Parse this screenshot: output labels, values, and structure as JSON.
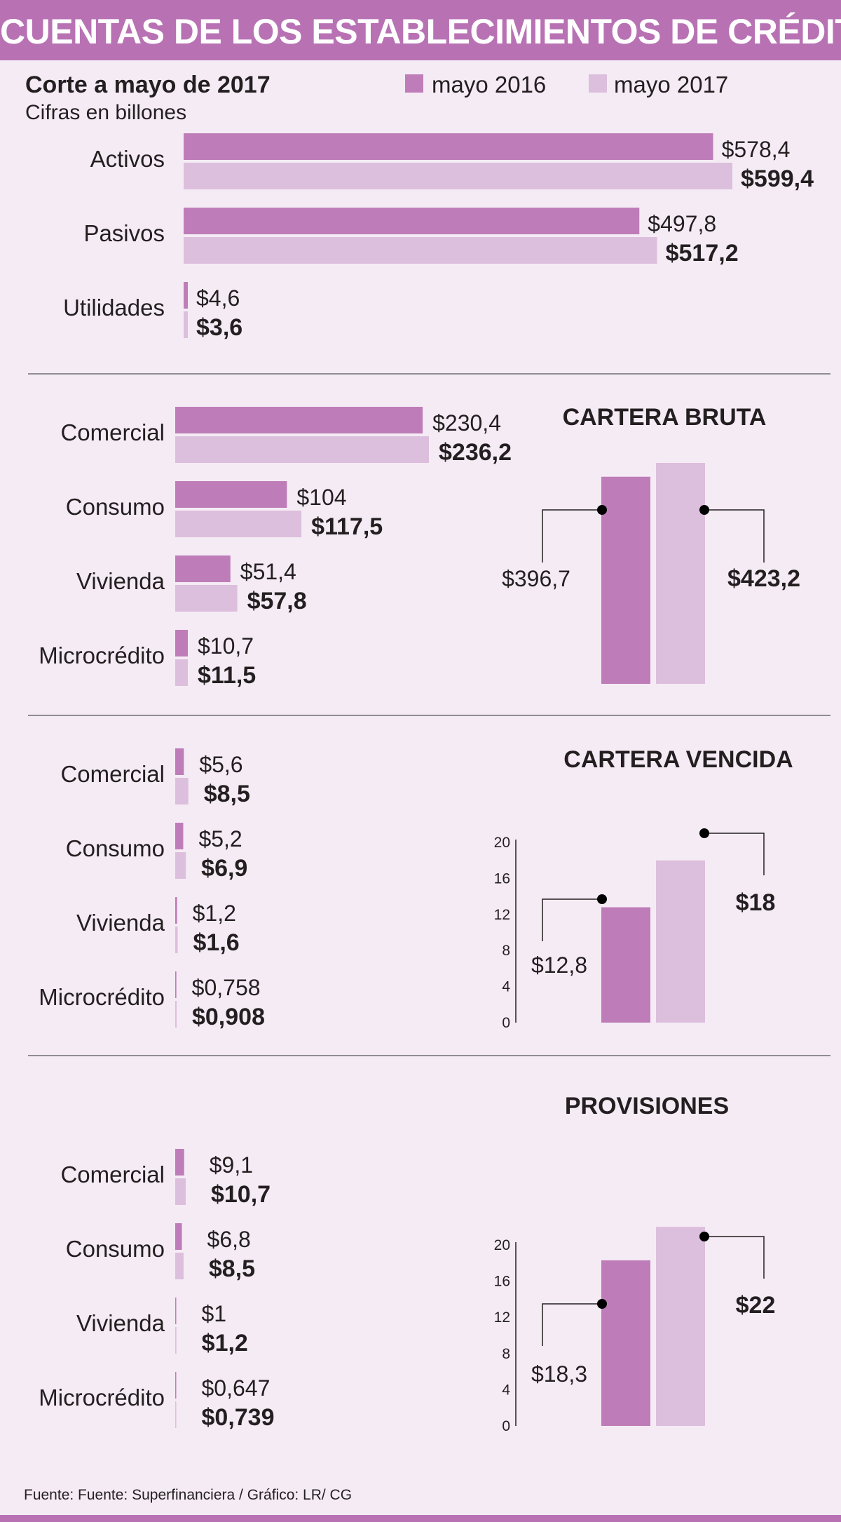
{
  "header": {
    "title": "CUENTAS DE LOS ESTABLECIMIENTOS DE CRÉDITO"
  },
  "subtitle": {
    "cut": "Corte a mayo de 2017",
    "units": "Cifras en billones"
  },
  "legend": [
    {
      "label": "mayo 2016",
      "color": "#be7db8"
    },
    {
      "label": "mayo 2017",
      "color": "#dcbfdc"
    }
  ],
  "source": "Fuente: Fuente: Superfinanciera / Gráfico: LR/ CG",
  "chart_data": [
    {
      "type": "bar",
      "orientation": "horizontal",
      "categories": [
        "Activos",
        "Pasivos",
        "Utilidades"
      ],
      "series": [
        {
          "name": "mayo 2016",
          "values": [
            578.4,
            497.8,
            4.6
          ],
          "labels": [
            "$578,4",
            "$497,8",
            "$4,6"
          ]
        },
        {
          "name": "mayo 2017",
          "values": [
            599.4,
            517.2,
            3.6
          ],
          "labels": [
            "$599,4",
            "$517,2",
            "$3,6"
          ]
        }
      ],
      "title": "",
      "xlim": [
        0,
        599.4
      ]
    },
    {
      "type": "bar",
      "orientation": "horizontal",
      "categories": [
        "Comercial",
        "Consumo",
        "Vivienda",
        "Microcrédito"
      ],
      "series": [
        {
          "name": "mayo 2016",
          "values": [
            230.4,
            104,
            51.4,
            10.7
          ],
          "labels": [
            "$230,4",
            "$104",
            "$51,4",
            "$10,7"
          ]
        },
        {
          "name": "mayo 2017",
          "values": [
            236.2,
            117.5,
            57.8,
            11.5
          ],
          "labels": [
            "$236,2",
            "$117,5",
            "$57,8",
            "$11,5"
          ]
        }
      ],
      "title": ""
    },
    {
      "type": "bar",
      "title": "CARTERA BRUTA",
      "series": [
        {
          "name": "mayo 2016",
          "values": [
            396.7
          ],
          "labels": [
            "$396,7"
          ]
        },
        {
          "name": "mayo 2017",
          "values": [
            423.2
          ],
          "labels": [
            "$423,2"
          ]
        }
      ],
      "ylim": [
        0,
        423.2
      ],
      "grid": false
    },
    {
      "type": "bar",
      "orientation": "horizontal",
      "categories": [
        "Comercial",
        "Consumo",
        "Vivienda",
        "Microcrédito"
      ],
      "series": [
        {
          "name": "mayo 2016",
          "values": [
            5.6,
            5.2,
            1.2,
            0.758
          ],
          "labels": [
            "$5,6",
            "$5,2",
            "$1,2",
            "$0,758"
          ]
        },
        {
          "name": "mayo 2017",
          "values": [
            8.5,
            6.9,
            1.6,
            0.908
          ],
          "labels": [
            "$8,5",
            "$6,9",
            "$1,6",
            "$0,908"
          ]
        }
      ],
      "title": ""
    },
    {
      "type": "bar",
      "title": "CARTERA VENCIDA",
      "series": [
        {
          "name": "mayo 2016",
          "values": [
            12.8
          ],
          "labels": [
            "$12,8"
          ]
        },
        {
          "name": "mayo 2017",
          "values": [
            18
          ],
          "labels": [
            "$18"
          ]
        }
      ],
      "yticks": [
        "0",
        "4",
        "8",
        "12",
        "16",
        "20"
      ],
      "ylim": [
        0,
        20
      ],
      "grid": false
    },
    {
      "type": "bar",
      "orientation": "horizontal",
      "categories": [
        "Comercial",
        "Consumo",
        "Vivienda",
        "Microcrédito"
      ],
      "series": [
        {
          "name": "mayo 2016",
          "values": [
            9.1,
            6.8,
            1,
            0.647
          ],
          "labels": [
            "$9,1",
            "$6,8",
            "$1",
            "$0,647"
          ]
        },
        {
          "name": "mayo 2017",
          "values": [
            10.7,
            8.5,
            1.2,
            0.739
          ],
          "labels": [
            "$10,7",
            "$8,5",
            "$1,2",
            "$0,739"
          ]
        }
      ],
      "title": ""
    },
    {
      "type": "bar",
      "title": "PROVISIONES",
      "series": [
        {
          "name": "mayo 2016",
          "values": [
            18.3
          ],
          "labels": [
            "$18,3"
          ]
        },
        {
          "name": "mayo 2017",
          "values": [
            22
          ],
          "labels": [
            "$22"
          ]
        }
      ],
      "yticks": [
        "0",
        "4",
        "8",
        "12",
        "16",
        "20"
      ],
      "ylim": [
        0,
        20
      ],
      "grid": false
    }
  ]
}
